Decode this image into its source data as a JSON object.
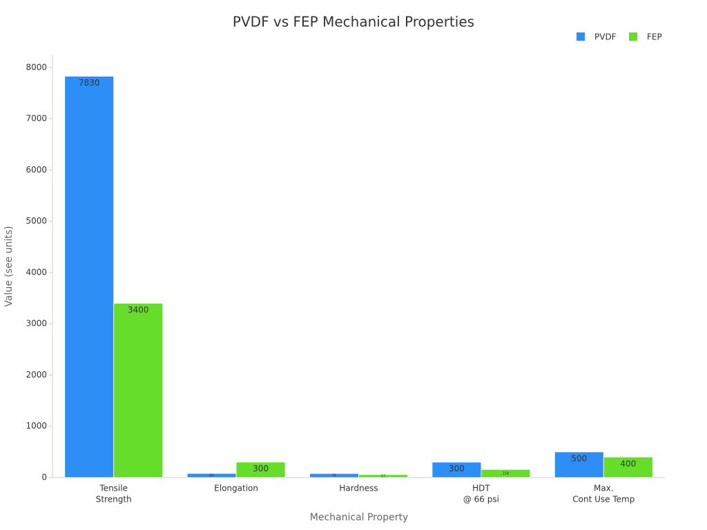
{
  "chart_data": {
    "type": "bar",
    "title": "PVDF vs FEP Mechanical Properties",
    "x_label": "Mechanical Property",
    "y_label": "Value (see units)",
    "categories": [
      [
        "Tensile",
        "Strength"
      ],
      [
        "Elongation"
      ],
      [
        "Hardness"
      ],
      [
        "HDT",
        "@ 66 psi"
      ],
      [
        "Max.",
        "Cont Use Temp"
      ]
    ],
    "series": [
      {
        "name": "PVDF",
        "color": "#2d8ff5",
        "values": [
          7830,
          80,
          78,
          300,
          500
        ]
      },
      {
        "name": "FEP",
        "color": "#66dd2a",
        "values": [
          3400,
          300,
          57,
          158,
          400
        ]
      }
    ],
    "ylim": [
      0,
      8240
    ],
    "yticks": [
      0,
      1000,
      2000,
      3000,
      4000,
      5000,
      6000,
      7000,
      8000
    ],
    "legend": "top-right"
  }
}
